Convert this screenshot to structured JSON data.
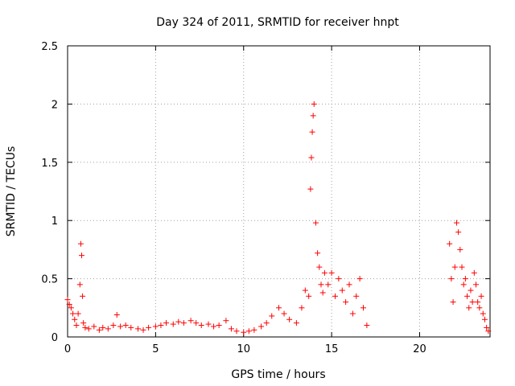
{
  "chart_data": {
    "type": "scatter",
    "title": "Day 324 of 2011, SRMTID for receiver hnpt",
    "xlabel": "GPS time / hours",
    "ylabel": "SRMTID / TECUs",
    "xlim": [
      0,
      24
    ],
    "ylim": [
      0,
      2.5
    ],
    "x_ticks": [
      0,
      5,
      10,
      15,
      20
    ],
    "y_ticks": [
      0,
      0.5,
      1,
      1.5,
      2,
      2.5
    ],
    "x_tick_labels": [
      "0",
      "5",
      "10",
      "15",
      "20"
    ],
    "y_tick_labels": [
      "0",
      "0.5",
      "1",
      "1.5",
      "2",
      "2.5"
    ],
    "grid": true,
    "marker": "plus",
    "color": "#ff0000",
    "series": [
      {
        "x": [
          0.0,
          0.1,
          0.2,
          0.3,
          0.4,
          0.5,
          0.6,
          0.7,
          0.75,
          0.8,
          0.85,
          0.9,
          1.0,
          1.2,
          1.5,
          1.8,
          2.0,
          2.3,
          2.6,
          2.8,
          3.0,
          3.3,
          3.6,
          4.0,
          4.3,
          4.6,
          5.0,
          5.3,
          5.6,
          6.0,
          6.3,
          6.6,
          7.0,
          7.3,
          7.6,
          8.0,
          8.3,
          8.6,
          9.0,
          9.3,
          9.6,
          10.0,
          10.3,
          10.6,
          11.0,
          11.3,
          11.6,
          12.0,
          12.3,
          12.6,
          13.0,
          13.3,
          13.5,
          13.7,
          13.8,
          13.85,
          13.9,
          13.95,
          14.0,
          14.1,
          14.2,
          14.3,
          14.4,
          14.5,
          14.6,
          14.8,
          15.0,
          15.2,
          15.4,
          15.6,
          15.8,
          16.0,
          16.2,
          16.4,
          16.6,
          16.8,
          17.0,
          21.7,
          21.8,
          21.9,
          22.0,
          22.1,
          22.2,
          22.3,
          22.4,
          22.5,
          22.6,
          22.7,
          22.8,
          22.9,
          23.0,
          23.1,
          23.2,
          23.3,
          23.4,
          23.5,
          23.6,
          23.7,
          23.8,
          23.9
        ],
        "y": [
          0.32,
          0.28,
          0.25,
          0.2,
          0.15,
          0.1,
          0.2,
          0.45,
          0.8,
          0.7,
          0.35,
          0.12,
          0.08,
          0.07,
          0.09,
          0.06,
          0.08,
          0.07,
          0.1,
          0.19,
          0.09,
          0.1,
          0.08,
          0.07,
          0.06,
          0.08,
          0.09,
          0.1,
          0.12,
          0.11,
          0.13,
          0.12,
          0.14,
          0.12,
          0.1,
          0.11,
          0.09,
          0.1,
          0.14,
          0.07,
          0.05,
          0.04,
          0.05,
          0.06,
          0.09,
          0.12,
          0.18,
          0.25,
          0.2,
          0.15,
          0.12,
          0.25,
          0.4,
          0.35,
          1.27,
          1.54,
          1.76,
          1.9,
          2.0,
          0.98,
          0.72,
          0.6,
          0.45,
          0.38,
          0.55,
          0.45,
          0.55,
          0.35,
          0.5,
          0.4,
          0.3,
          0.45,
          0.2,
          0.35,
          0.5,
          0.25,
          0.1,
          0.8,
          0.5,
          0.3,
          0.6,
          0.98,
          0.9,
          0.75,
          0.6,
          0.45,
          0.5,
          0.35,
          0.25,
          0.4,
          0.3,
          0.55,
          0.45,
          0.3,
          0.25,
          0.35,
          0.2,
          0.15,
          0.08,
          0.05
        ]
      }
    ]
  }
}
